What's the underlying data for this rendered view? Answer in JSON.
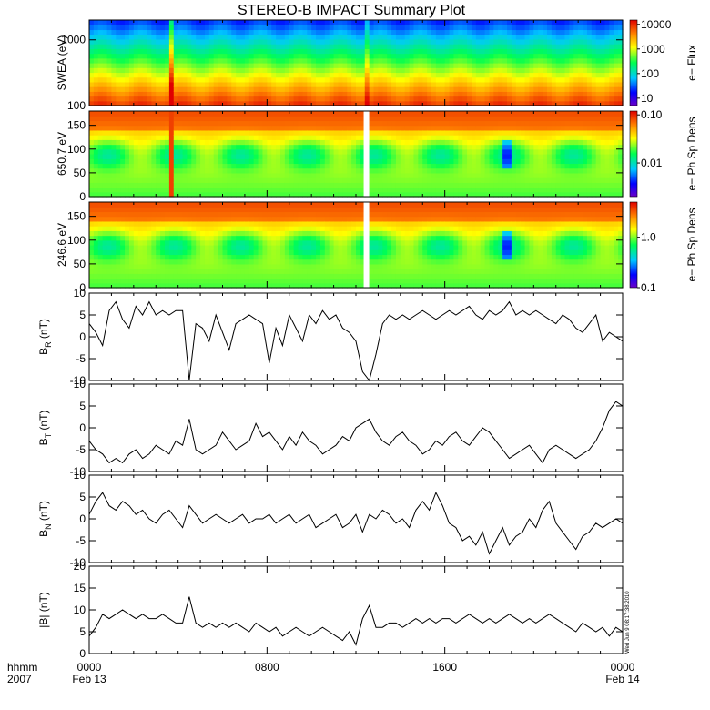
{
  "chart_data": {
    "type": "line",
    "title": "STEREO-B IMPACT Summary Plot",
    "x_axis": {
      "label_line1": "hhmm",
      "label_line2": "2007",
      "ticks": [
        {
          "hours": 0,
          "time": "0000",
          "date": "Feb 13"
        },
        {
          "hours": 8,
          "time": "0800",
          "date": ""
        },
        {
          "hours": 16,
          "time": "1600",
          "date": ""
        },
        {
          "hours": 24,
          "time": "0000",
          "date": "Feb 14"
        }
      ],
      "range_hours": [
        0,
        24
      ]
    },
    "panels": [
      {
        "id": "swea",
        "kind": "spectrogram",
        "ylabel": "SWEA (eV)",
        "yscale": "log",
        "ylim": [
          100,
          2000
        ],
        "yticks": [
          "1000",
          "100"
        ],
        "colorbar": {
          "label": "e− Flux",
          "scale": "log",
          "ticks": [
            "10000",
            "1000",
            "100",
            "10"
          ],
          "range": [
            5,
            15000
          ]
        }
      },
      {
        "id": "pad650",
        "kind": "spectrogram",
        "ylabel": "650.7 eV",
        "yscale": "linear",
        "ylim": [
          0,
          180
        ],
        "yticks": [
          "150",
          "100",
          "50",
          "0"
        ],
        "colorbar": {
          "label": "e− Ph Sp Dens",
          "scale": "log",
          "ticks": [
            "0.10",
            "0.01"
          ],
          "range": [
            0.002,
            0.12
          ]
        }
      },
      {
        "id": "pad246",
        "kind": "spectrogram",
        "ylabel": "246.6 eV",
        "yscale": "linear",
        "ylim": [
          0,
          180
        ],
        "yticks": [
          "150",
          "100",
          "50",
          "0"
        ],
        "colorbar": {
          "label": "e− Ph Sp Dens",
          "scale": "log",
          "ticks": [
            "1.0",
            "0.1"
          ],
          "range": [
            0.1,
            5
          ]
        }
      },
      {
        "id": "br",
        "kind": "line",
        "ylabel_main": "B",
        "ylabel_sub": "R",
        "ylabel_unit": "(nT)",
        "ylim": [
          -10,
          10
        ],
        "yticks": [
          "10",
          "5",
          "0",
          "-5",
          "-10"
        ],
        "x": [
          0,
          0.3,
          0.6,
          0.9,
          1.2,
          1.5,
          1.8,
          2.1,
          2.4,
          2.7,
          3.0,
          3.3,
          3.6,
          3.9,
          4.2,
          4.5,
          4.8,
          5.1,
          5.4,
          5.7,
          6.0,
          6.3,
          6.6,
          6.9,
          7.2,
          7.5,
          7.8,
          8.1,
          8.4,
          8.7,
          9.0,
          9.3,
          9.6,
          9.9,
          10.2,
          10.5,
          10.8,
          11.1,
          11.4,
          11.7,
          12.0,
          12.3,
          12.6,
          12.9,
          13.2,
          13.5,
          13.8,
          14.1,
          14.4,
          14.7,
          15.0,
          15.3,
          15.6,
          15.9,
          16.2,
          16.5,
          16.8,
          17.1,
          17.4,
          17.7,
          18.0,
          18.3,
          18.6,
          18.9,
          19.2,
          19.5,
          19.8,
          20.1,
          20.4,
          20.7,
          21.0,
          21.3,
          21.6,
          21.9,
          22.2,
          22.5,
          22.8,
          23.1,
          23.4,
          23.7,
          24.0
        ],
        "values": [
          3,
          1,
          -2,
          6,
          8,
          4,
          2,
          7,
          5,
          8,
          5,
          6,
          5,
          6,
          6,
          -10,
          3,
          2,
          -1,
          5,
          1,
          -3,
          3,
          4,
          5,
          4,
          3,
          -6,
          2,
          -2,
          5,
          2,
          -1,
          5,
          3,
          6,
          4,
          5,
          2,
          1,
          -1,
          -8,
          -10,
          -4,
          3,
          5,
          4,
          5,
          4,
          5,
          6,
          5,
          4,
          5,
          6,
          5,
          6,
          7,
          5,
          4,
          6,
          5,
          6,
          8,
          5,
          6,
          5,
          6,
          5,
          4,
          3,
          5,
          4,
          2,
          1,
          3,
          5,
          -1,
          1,
          0,
          -1
        ]
      },
      {
        "id": "bt",
        "kind": "line",
        "ylabel_main": "B",
        "ylabel_sub": "T",
        "ylabel_unit": "(nT)",
        "ylim": [
          -10,
          10
        ],
        "yticks": [
          "10",
          "5",
          "0",
          "-5",
          "-10"
        ],
        "x": [
          0,
          0.3,
          0.6,
          0.9,
          1.2,
          1.5,
          1.8,
          2.1,
          2.4,
          2.7,
          3.0,
          3.3,
          3.6,
          3.9,
          4.2,
          4.5,
          4.8,
          5.1,
          5.4,
          5.7,
          6.0,
          6.3,
          6.6,
          6.9,
          7.2,
          7.5,
          7.8,
          8.1,
          8.4,
          8.7,
          9.0,
          9.3,
          9.6,
          9.9,
          10.2,
          10.5,
          10.8,
          11.1,
          11.4,
          11.7,
          12.0,
          12.3,
          12.6,
          12.9,
          13.2,
          13.5,
          13.8,
          14.1,
          14.4,
          14.7,
          15.0,
          15.3,
          15.6,
          15.9,
          16.2,
          16.5,
          16.8,
          17.1,
          17.4,
          17.7,
          18.0,
          18.3,
          18.6,
          18.9,
          19.2,
          19.5,
          19.8,
          20.1,
          20.4,
          20.7,
          21.0,
          21.3,
          21.6,
          21.9,
          22.2,
          22.5,
          22.8,
          23.1,
          23.4,
          23.7,
          24.0
        ],
        "values": [
          -3,
          -5,
          -6,
          -8,
          -7,
          -8,
          -6,
          -5,
          -7,
          -6,
          -4,
          -5,
          -6,
          -3,
          -4,
          2,
          -5,
          -6,
          -5,
          -4,
          -1,
          -3,
          -5,
          -4,
          -3,
          1,
          -2,
          -1,
          -3,
          -5,
          -2,
          -4,
          -1,
          -3,
          -4,
          -6,
          -5,
          -4,
          -2,
          -3,
          0,
          1,
          2,
          -1,
          -3,
          -4,
          -2,
          -1,
          -3,
          -4,
          -6,
          -5,
          -3,
          -4,
          -2,
          -1,
          -3,
          -4,
          -2,
          0,
          -1,
          -3,
          -5,
          -7,
          -6,
          -5,
          -4,
          -6,
          -8,
          -5,
          -4,
          -5,
          -6,
          -7,
          -6,
          -5,
          -3,
          0,
          4,
          6,
          5
        ]
      },
      {
        "id": "bn",
        "kind": "line",
        "ylabel_main": "B",
        "ylabel_sub": "N",
        "ylabel_unit": "(nT)",
        "ylim": [
          -10,
          10
        ],
        "yticks": [
          "10",
          "5",
          "0",
          "-5",
          "-10"
        ],
        "x": [
          0,
          0.3,
          0.6,
          0.9,
          1.2,
          1.5,
          1.8,
          2.1,
          2.4,
          2.7,
          3.0,
          3.3,
          3.6,
          3.9,
          4.2,
          4.5,
          4.8,
          5.1,
          5.4,
          5.7,
          6.0,
          6.3,
          6.6,
          6.9,
          7.2,
          7.5,
          7.8,
          8.1,
          8.4,
          8.7,
          9.0,
          9.3,
          9.6,
          9.9,
          10.2,
          10.5,
          10.8,
          11.1,
          11.4,
          11.7,
          12.0,
          12.3,
          12.6,
          12.9,
          13.2,
          13.5,
          13.8,
          14.1,
          14.4,
          14.7,
          15.0,
          15.3,
          15.6,
          15.9,
          16.2,
          16.5,
          16.8,
          17.1,
          17.4,
          17.7,
          18.0,
          18.3,
          18.6,
          18.9,
          19.2,
          19.5,
          19.8,
          20.1,
          20.4,
          20.7,
          21.0,
          21.3,
          21.6,
          21.9,
          22.2,
          22.5,
          22.8,
          23.1,
          23.4,
          23.7,
          24.0
        ],
        "values": [
          1,
          4,
          6,
          3,
          2,
          4,
          3,
          1,
          2,
          0,
          -1,
          1,
          2,
          0,
          -2,
          3,
          1,
          -1,
          0,
          1,
          0,
          -1,
          0,
          1,
          -1,
          0,
          0,
          1,
          -1,
          0,
          1,
          -1,
          0,
          1,
          -2,
          -1,
          0,
          1,
          -2,
          -1,
          1,
          -3,
          1,
          0,
          2,
          1,
          -1,
          0,
          -2,
          2,
          4,
          2,
          6,
          3,
          -1,
          -2,
          -5,
          -4,
          -6,
          -3,
          -8,
          -5,
          -2,
          -6,
          -4,
          -3,
          0,
          -2,
          2,
          4,
          -1,
          -3,
          -5,
          -7,
          -4,
          -3,
          -1,
          -2,
          -1,
          0,
          -1
        ]
      },
      {
        "id": "bmag",
        "kind": "line",
        "ylabel_main": "|B|",
        "ylabel_sub": "",
        "ylabel_unit": "(nT)",
        "ylim": [
          0,
          20
        ],
        "yticks": [
          "20",
          "15",
          "10",
          "5",
          "0"
        ],
        "x": [
          0,
          0.3,
          0.6,
          0.9,
          1.2,
          1.5,
          1.8,
          2.1,
          2.4,
          2.7,
          3.0,
          3.3,
          3.6,
          3.9,
          4.2,
          4.5,
          4.8,
          5.1,
          5.4,
          5.7,
          6.0,
          6.3,
          6.6,
          6.9,
          7.2,
          7.5,
          7.8,
          8.1,
          8.4,
          8.7,
          9.0,
          9.3,
          9.6,
          9.9,
          10.2,
          10.5,
          10.8,
          11.1,
          11.4,
          11.7,
          12.0,
          12.3,
          12.6,
          12.9,
          13.2,
          13.5,
          13.8,
          14.1,
          14.4,
          14.7,
          15.0,
          15.3,
          15.6,
          15.9,
          16.2,
          16.5,
          16.8,
          17.1,
          17.4,
          17.7,
          18.0,
          18.3,
          18.6,
          18.9,
          19.2,
          19.5,
          19.8,
          20.1,
          20.4,
          20.7,
          21.0,
          21.3,
          21.6,
          21.9,
          22.2,
          22.5,
          22.8,
          23.1,
          23.4,
          23.7,
          24.0
        ],
        "values": [
          4,
          6,
          9,
          8,
          9,
          10,
          9,
          8,
          9,
          8,
          8,
          9,
          8,
          7,
          7,
          13,
          7,
          6,
          7,
          6,
          7,
          6,
          7,
          6,
          5,
          7,
          6,
          5,
          6,
          4,
          5,
          6,
          5,
          4,
          5,
          6,
          5,
          4,
          3,
          5,
          2,
          8,
          11,
          6,
          6,
          7,
          7,
          6,
          7,
          8,
          7,
          8,
          7,
          8,
          8,
          7,
          8,
          9,
          8,
          7,
          8,
          7,
          8,
          9,
          8,
          7,
          8,
          7,
          8,
          9,
          8,
          7,
          6,
          5,
          7,
          6,
          5,
          6,
          4,
          6,
          5
        ]
      }
    ]
  },
  "stamp": "Wed Jun  9 08:17:38 2010"
}
